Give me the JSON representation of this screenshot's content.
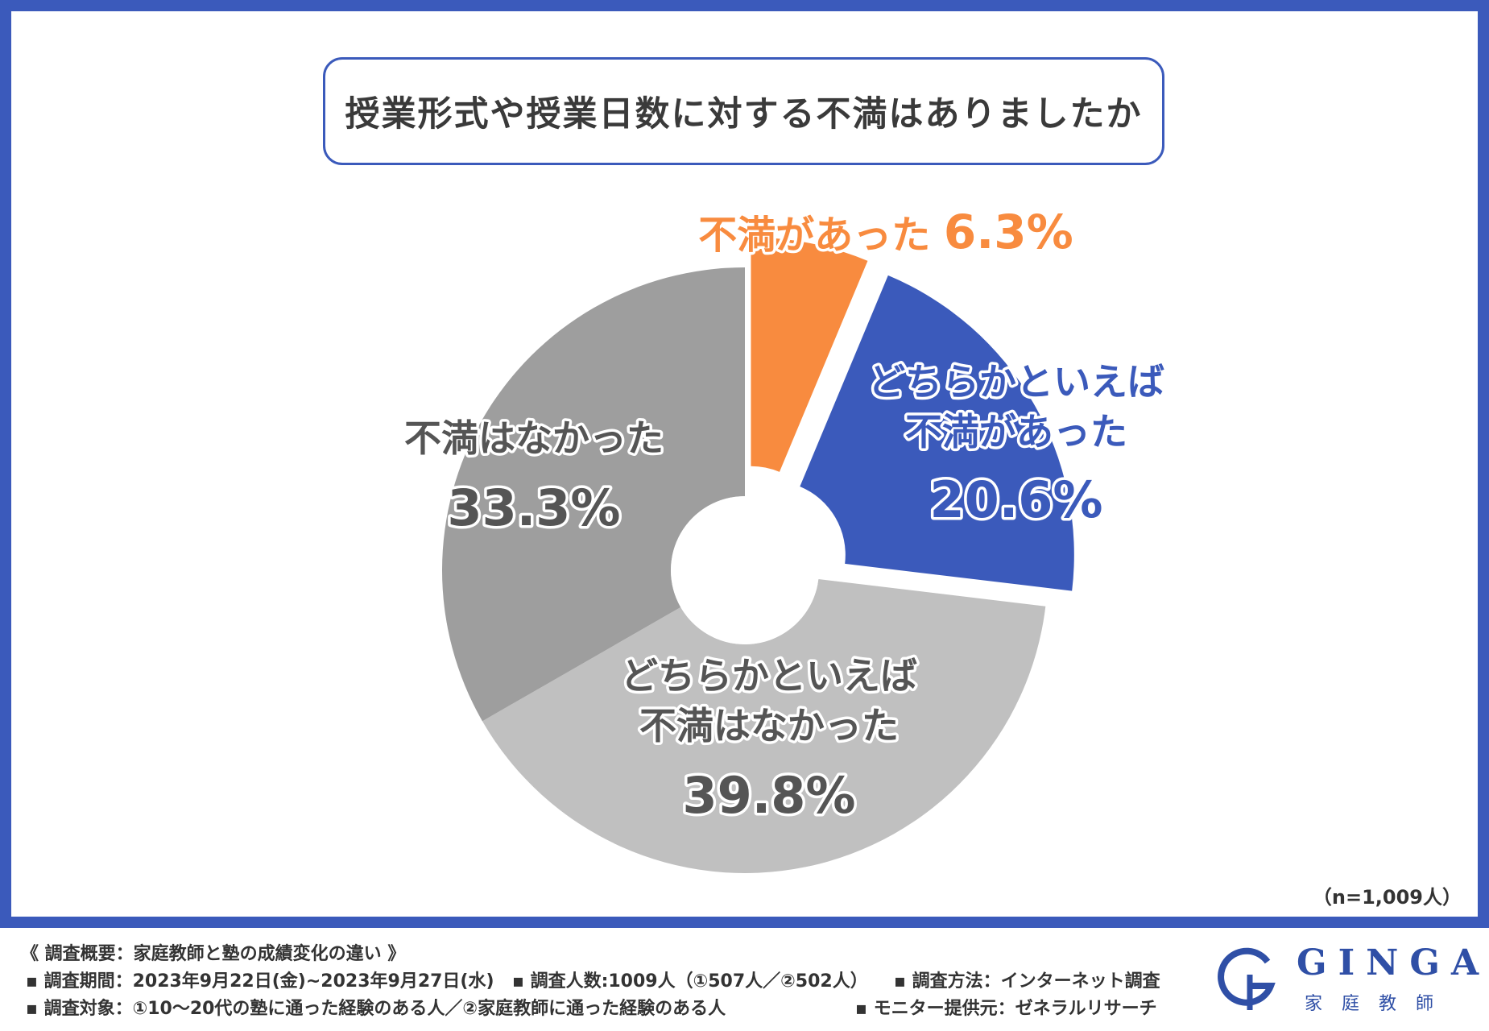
{
  "title": "授業形式や授業日数に対する不満はありましたか",
  "sample_size": "（n=1,009人）",
  "colors": {
    "frame": "#3b5abb",
    "orange": "#f88b3f",
    "blue": "#3b5abb",
    "light_gray": "#c0c0c0",
    "dark_gray": "#9e9e9e"
  },
  "chart_data": {
    "type": "pie",
    "style": "donut",
    "categories": [
      "不満があった",
      "どちらかといえば不満があった",
      "どちらかといえば不満はなかった",
      "不満はなかった"
    ],
    "values": [
      6.3,
      20.6,
      39.8,
      33.3
    ],
    "labels": [
      {
        "lines": [
          "不満があった"
        ],
        "value": "6.3%"
      },
      {
        "lines": [
          "どちらかといえば",
          "不満があった"
        ],
        "value": "20.6%"
      },
      {
        "lines": [
          "どちらかといえば",
          "不満はなかった"
        ],
        "value": "39.8%"
      },
      {
        "lines": [
          "不満はなかった"
        ],
        "value": "33.3%"
      }
    ],
    "colors": [
      "#f88b3f",
      "#3b5abb",
      "#c0c0c0",
      "#9e9e9e"
    ],
    "exploded": [
      true,
      true,
      false,
      false
    ]
  },
  "footer": {
    "overview": "《 調査概要：家庭教師と塾の成績変化の違い 》",
    "period": "調査期間：2023年9月22日(金)~2023年9月27日(水)",
    "respondents": "調査人数:1009人（①507人／②502人）",
    "method": "調査方法：インターネット調査",
    "target": "調査対象：①10～20代の塾に通った経験のある人／②家庭教師に通った経験のある人",
    "monitor": "モニター提供元：ゼネラルリサーチ"
  },
  "logo": {
    "name": "GINGA",
    "sub": "家庭教師"
  }
}
